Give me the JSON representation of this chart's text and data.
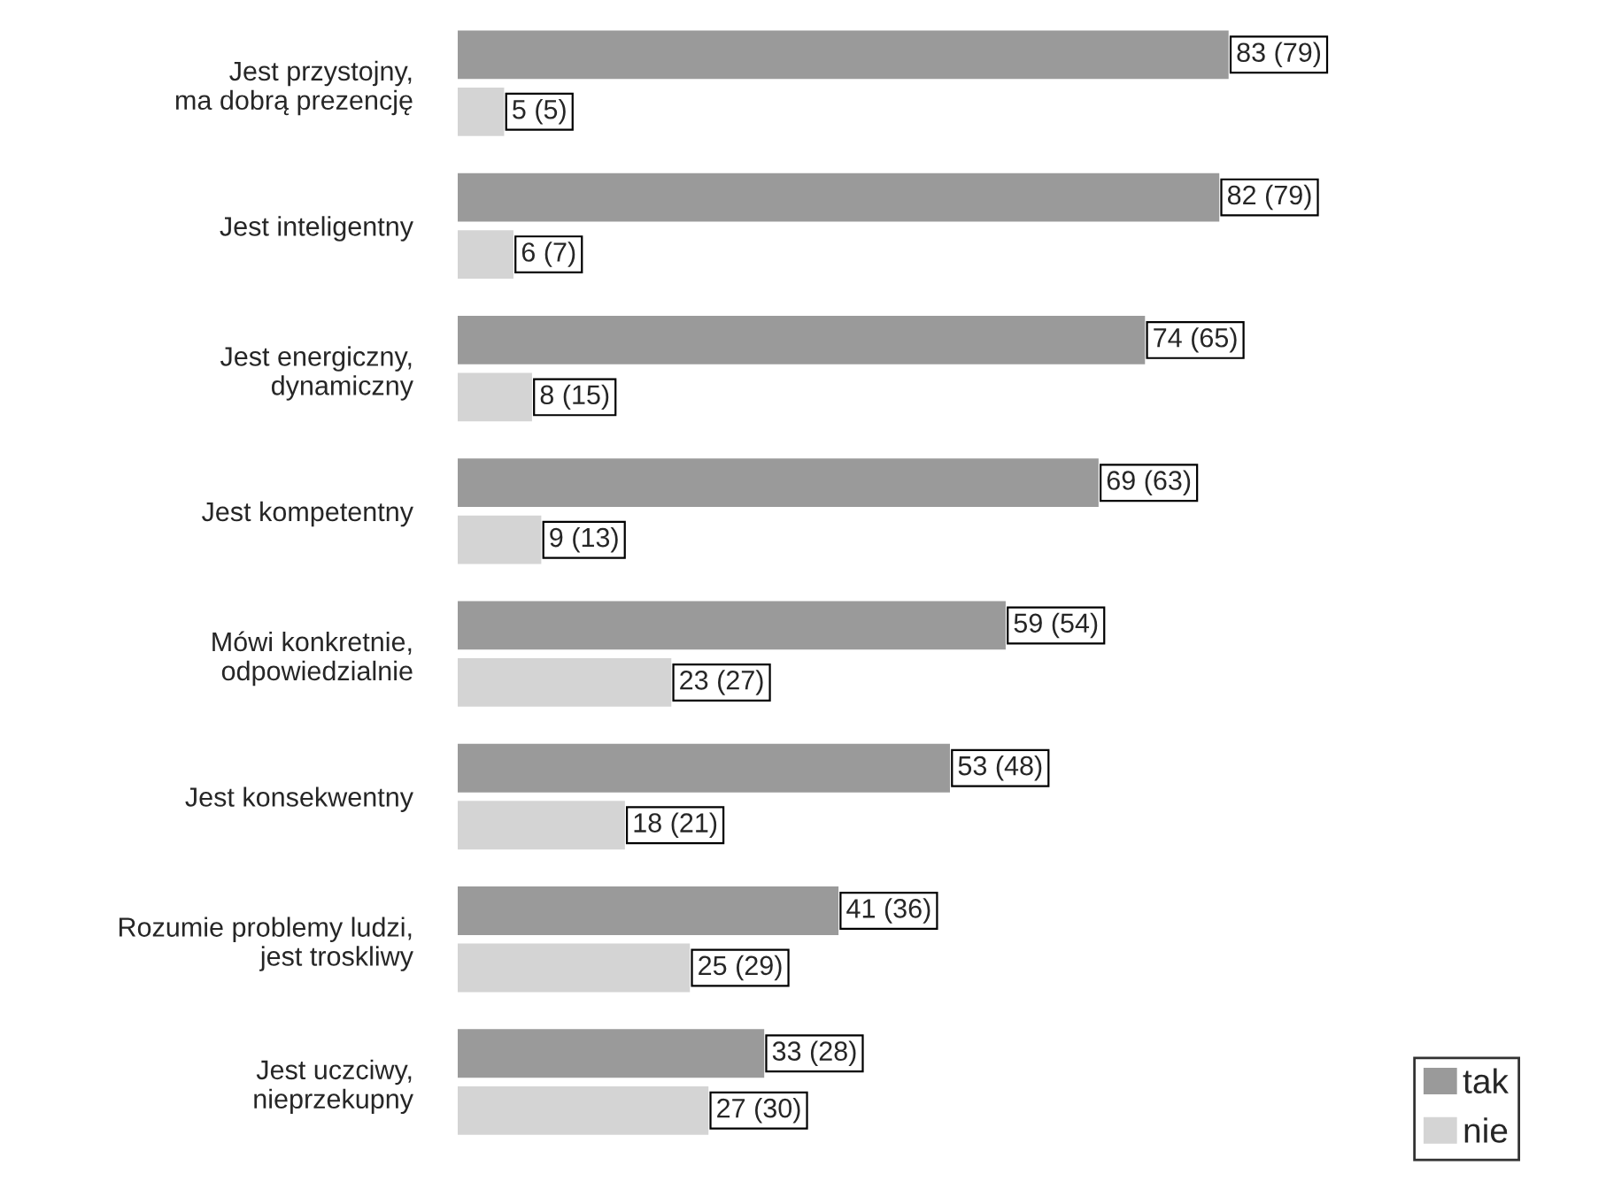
{
  "chart_data": {
    "type": "bar",
    "orientation": "horizontal",
    "categories": [
      "Jest przystojny,\nma dobrą prezencję",
      "Jest inteligentny",
      "Jest energiczny,\ndynamiczny",
      "Jest kompetentny",
      "Mówi konkretnie,\nodpowiedzialnie",
      "Jest konsekwentny",
      "Rozumie problemy ludzi,\njest troskliwy",
      "Jest uczciwy,\nnieprzekupny"
    ],
    "series": [
      {
        "name": "tak",
        "color": "#9a9a9a",
        "values": [
          83,
          82,
          74,
          69,
          59,
          53,
          41,
          33
        ],
        "value_labels": [
          "83 (79)",
          "82 (79)",
          "74 (65)",
          "69 (63)",
          "59 (54)",
          "53 (48)",
          "41 (36)",
          "33 (28)"
        ]
      },
      {
        "name": "nie",
        "color": "#d4d4d4",
        "values": [
          5,
          6,
          8,
          9,
          23,
          18,
          25,
          27
        ],
        "value_labels": [
          "5 (5)",
          "6 (7)",
          "8 (15)",
          "9 (13)",
          "23 (27)",
          "18 (21)",
          "25 (29)",
          "27 (30)"
        ]
      }
    ],
    "legend": "bottom right"
  }
}
